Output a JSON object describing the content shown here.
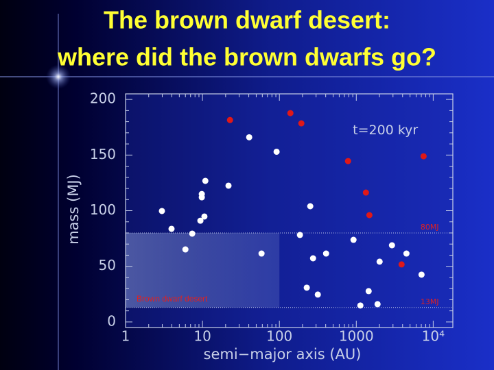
{
  "chart_data": {
    "type": "scatter",
    "title": [
      "The brown dwarf desert:",
      "where did the brown dwarfs go?"
    ],
    "xlabel": "semi−major axis (AU)",
    "ylabel": "mass (MJ)",
    "xscale": "log",
    "xlim": [
      1,
      18000
    ],
    "ylim": [
      -5,
      205
    ],
    "xticks": [
      1,
      10,
      100,
      1000,
      {
        "value": 10000,
        "label": "10⁴"
      }
    ],
    "yticks": [
      0,
      50,
      100,
      150,
      200
    ],
    "grid": false,
    "annotations": [
      {
        "text": "t=200 kyr",
        "x": 900,
        "y": 172
      },
      {
        "text": "80MJ",
        "x": 9000,
        "y": 80
      },
      {
        "text": "13MJ",
        "x": 9000,
        "y": 13
      }
    ],
    "region": {
      "label": "Brown dwarf desert",
      "xlim": [
        1,
        100
      ],
      "ylim": [
        13,
        80
      ]
    },
    "series": [
      {
        "color": "#e01818",
        "x": [
          22.8,
          139,
          193,
          781,
          7500,
          1334,
          1480,
          3880
        ],
        "values": [
          181.5,
          187.7,
          178.5,
          144.6,
          148.9,
          116.3,
          96,
          51.7
        ]
      },
      {
        "color": "#ffffff",
        "x": [
          40.5,
          92,
          10.9,
          21.8,
          9.8,
          9.8,
          2.97,
          252,
          10.6,
          9.4,
          3.96,
          7.35,
          185,
          920,
          6.0,
          58.6,
          2910,
          405,
          274,
          2010,
          4490,
          7050,
          227,
          316,
          1448,
          1130,
          1890
        ],
        "values": [
          166,
          153,
          126.8,
          122.5,
          115,
          112,
          99.7,
          104,
          94.8,
          91,
          83.7,
          79.4,
          78.2,
          73.8,
          65.2,
          61.5,
          68.9,
          61.5,
          57.2,
          54.2,
          61.5,
          42.5,
          30.8,
          24.6,
          27.7,
          14.8,
          16
        ]
      }
    ]
  }
}
